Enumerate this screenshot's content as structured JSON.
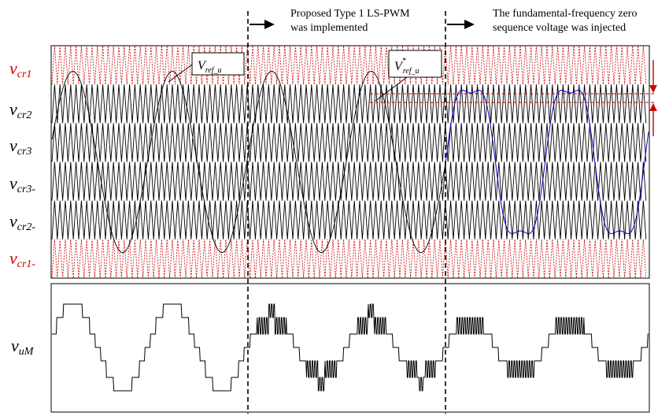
{
  "annotations": {
    "stage2_line1": "Proposed Type 1 LS-PWM",
    "stage2_line2": "was implemented",
    "stage3_line1": "The fundamental-frequency zero",
    "stage3_line2": "sequence voltage was injected"
  },
  "carrier_labels": [
    {
      "main": "v",
      "sub": "cr1",
      "color": "#cc0000"
    },
    {
      "main": "v",
      "sub": "cr2",
      "color": "#000000"
    },
    {
      "main": "v",
      "sub": "cr3",
      "color": "#000000"
    },
    {
      "main": "v",
      "sub": "cr3-",
      "color": "#000000"
    },
    {
      "main": "v",
      "sub": "cr2-",
      "color": "#000000"
    },
    {
      "main": "v",
      "sub": "cr1-",
      "color": "#cc0000"
    }
  ],
  "output_label": {
    "main": "v",
    "sub": "uM"
  },
  "callouts": {
    "ref1": {
      "main": "V",
      "sub": "ref_u",
      "sup": ""
    },
    "ref2": {
      "main": "V",
      "sub": "ref_u",
      "sup": "*"
    }
  },
  "chart_data": {
    "type": "line",
    "title": "",
    "xlabel": "",
    "ylabel": "",
    "levels": 6,
    "stages": 3,
    "colors": {
      "carrier_outer": "#cc0000",
      "carrier_inner": "#000000",
      "reference_original": "#000000",
      "reference_injected": "#0000cc"
    },
    "series": [
      {
        "values": "sinusoidal reference, two cycles per stage"
      },
      {
        "values": "reference with zero-sequence injection in the third stage"
      },
      {
        "values": "staircase output voltage vuM"
      }
    ]
  }
}
